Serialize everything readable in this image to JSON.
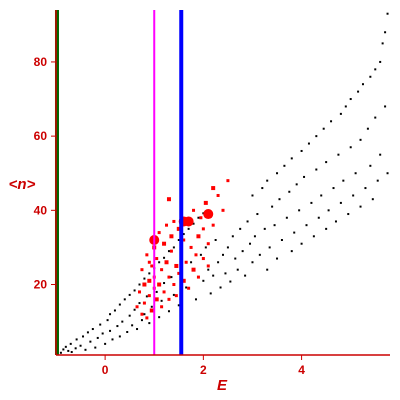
{
  "chart_data": {
    "type": "scatter",
    "title": "",
    "xlabel": "E",
    "ylabel": "<n>",
    "xlim": [
      -1.0,
      5.8
    ],
    "ylim": [
      1,
      94
    ],
    "grid": false,
    "x_ticks": [
      0,
      2,
      4
    ],
    "y_ticks": [
      20,
      40,
      60,
      80
    ],
    "colors": {
      "axes": "#cc0000",
      "tick_labels": "#cc0000",
      "black_points": "#000000",
      "red_points": "#ff0000",
      "line_green": "#006600",
      "line_magenta": "#ff00ff",
      "line_blue": "#0000ff"
    },
    "vertical_lines": [
      {
        "x": -0.98,
        "color": "#006600",
        "width_class": "thick"
      },
      {
        "x": 1.0,
        "color": "#ff00ff",
        "width_class": "thin"
      },
      {
        "x": 1.55,
        "color": "#0000ff",
        "width_class": "thick"
      }
    ],
    "series": [
      {
        "marker": "small-square",
        "color": "#000000",
        "points": [
          [
            -0.9,
            1.6
          ],
          [
            -0.85,
            2.5
          ],
          [
            -0.8,
            3.2
          ],
          [
            -0.75,
            2.1
          ],
          [
            -0.7,
            4.0
          ],
          [
            -0.68,
            1.8
          ],
          [
            -0.6,
            2.8
          ],
          [
            -0.58,
            5.2
          ],
          [
            -0.5,
            3.5
          ],
          [
            -0.45,
            6.0
          ],
          [
            -0.4,
            2.4
          ],
          [
            -0.35,
            7.1
          ],
          [
            -0.3,
            4.6
          ],
          [
            -0.25,
            8.0
          ],
          [
            -0.2,
            3.0
          ],
          [
            -0.15,
            5.6
          ],
          [
            -0.1,
            9.2
          ],
          [
            -0.05,
            6.8
          ],
          [
            0.0,
            4.0
          ],
          [
            0.05,
            10.4
          ],
          [
            0.1,
            7.5
          ],
          [
            0.1,
            12.0
          ],
          [
            0.15,
            5.2
          ],
          [
            0.2,
            13.0
          ],
          [
            0.25,
            8.8
          ],
          [
            0.3,
            6.0
          ],
          [
            0.3,
            14.6
          ],
          [
            0.35,
            10.0
          ],
          [
            0.4,
            16.0
          ],
          [
            0.45,
            7.2
          ],
          [
            0.5,
            17.2
          ],
          [
            0.5,
            11.6
          ],
          [
            0.55,
            9.0
          ],
          [
            0.6,
            18.4
          ],
          [
            0.6,
            13.2
          ],
          [
            0.65,
            8.0
          ],
          [
            0.7,
            20.0
          ],
          [
            0.7,
            15.0
          ],
          [
            0.75,
            10.4
          ],
          [
            0.8,
            21.6
          ],
          [
            0.8,
            12.0
          ],
          [
            0.85,
            16.8
          ],
          [
            0.9,
            23.0
          ],
          [
            0.9,
            9.6
          ],
          [
            0.95,
            14.0
          ],
          [
            1.0,
            24.4
          ],
          [
            1.05,
            18.0
          ],
          [
            1.1,
            11.2
          ],
          [
            1.1,
            26.0
          ],
          [
            1.15,
            15.6
          ],
          [
            1.2,
            27.2
          ],
          [
            1.2,
            20.4
          ],
          [
            1.3,
            12.8
          ],
          [
            1.3,
            29.0
          ],
          [
            1.35,
            22.0
          ],
          [
            1.4,
            30.0
          ],
          [
            1.4,
            17.2
          ],
          [
            1.5,
            32.0
          ],
          [
            1.5,
            14.4
          ],
          [
            1.55,
            24.0
          ],
          [
            1.6,
            33.6
          ],
          [
            1.65,
            19.2
          ],
          [
            1.7,
            35.0
          ],
          [
            1.75,
            26.0
          ],
          [
            1.8,
            36.4
          ],
          [
            1.85,
            16.0
          ],
          [
            1.9,
            38.0
          ],
          [
            1.95,
            28.0
          ],
          [
            2.0,
            21.0
          ],
          [
            2.0,
            39.2
          ],
          [
            2.05,
            30.0
          ],
          [
            2.1,
            24.0
          ],
          [
            2.15,
            17.6
          ],
          [
            2.2,
            22.4
          ],
          [
            2.25,
            32.0
          ],
          [
            2.3,
            26.0
          ],
          [
            2.35,
            19.2
          ],
          [
            2.4,
            28.0
          ],
          [
            2.45,
            23.0
          ],
          [
            2.5,
            30.0
          ],
          [
            2.55,
            20.8
          ],
          [
            2.6,
            33.0
          ],
          [
            2.65,
            27.0
          ],
          [
            2.7,
            24.0
          ],
          [
            2.75,
            35.0
          ],
          [
            2.8,
            29.0
          ],
          [
            2.85,
            22.4
          ],
          [
            2.9,
            37.0
          ],
          [
            2.95,
            31.0
          ],
          [
            3.0,
            26.0
          ],
          [
            3.0,
            44.0
          ],
          [
            3.05,
            33.0
          ],
          [
            3.1,
            39.0
          ],
          [
            3.15,
            28.0
          ],
          [
            3.2,
            46.0
          ],
          [
            3.25,
            35.0
          ],
          [
            3.3,
            24.0
          ],
          [
            3.3,
            48.0
          ],
          [
            3.35,
            30.0
          ],
          [
            3.4,
            41.0
          ],
          [
            3.45,
            36.0
          ],
          [
            3.5,
            50.0
          ],
          [
            3.5,
            27.0
          ],
          [
            3.55,
            43.0
          ],
          [
            3.6,
            32.0
          ],
          [
            3.65,
            52.0
          ],
          [
            3.7,
            38.0
          ],
          [
            3.75,
            45.0
          ],
          [
            3.8,
            29.0
          ],
          [
            3.8,
            54.0
          ],
          [
            3.85,
            34.0
          ],
          [
            3.9,
            47.0
          ],
          [
            3.95,
            40.0
          ],
          [
            4.0,
            56.0
          ],
          [
            4.0,
            31.0
          ],
          [
            4.05,
            49.0
          ],
          [
            4.1,
            36.0
          ],
          [
            4.15,
            58.0
          ],
          [
            4.2,
            42.0
          ],
          [
            4.25,
            33.0
          ],
          [
            4.3,
            60.0
          ],
          [
            4.3,
            51.0
          ],
          [
            4.35,
            38.0
          ],
          [
            4.4,
            44.0
          ],
          [
            4.45,
            62.0
          ],
          [
            4.5,
            35.0
          ],
          [
            4.5,
            53.0
          ],
          [
            4.55,
            40.0
          ],
          [
            4.6,
            64.0
          ],
          [
            4.65,
            46.0
          ],
          [
            4.7,
            37.0
          ],
          [
            4.75,
            55.0
          ],
          [
            4.8,
            66.0
          ],
          [
            4.8,
            42.0
          ],
          [
            4.85,
            48.0
          ],
          [
            4.9,
            68.0
          ],
          [
            4.95,
            39.0
          ],
          [
            5.0,
            57.0
          ],
          [
            5.0,
            70.0
          ],
          [
            5.05,
            44.0
          ],
          [
            5.1,
            50.0
          ],
          [
            5.15,
            72.0
          ],
          [
            5.2,
            41.0
          ],
          [
            5.2,
            59.0
          ],
          [
            5.25,
            74.0
          ],
          [
            5.3,
            46.0
          ],
          [
            5.35,
            62.0
          ],
          [
            5.4,
            76.0
          ],
          [
            5.4,
            52.0
          ],
          [
            5.45,
            43.0
          ],
          [
            5.5,
            78.0
          ],
          [
            5.5,
            65.0
          ],
          [
            5.55,
            48.0
          ],
          [
            5.6,
            80.0
          ],
          [
            5.6,
            55.0
          ],
          [
            5.65,
            85.0
          ],
          [
            5.7,
            68.0
          ],
          [
            5.7,
            88.0
          ],
          [
            5.75,
            50.0
          ],
          [
            5.75,
            93.0
          ]
        ]
      },
      {
        "marker": "square-sized",
        "color": "#ff0000",
        "points": [
          [
            0.65,
            14,
            1
          ],
          [
            0.7,
            18,
            1
          ],
          [
            0.75,
            12,
            1
          ],
          [
            0.75,
            24,
            1
          ],
          [
            0.8,
            20,
            2
          ],
          [
            0.8,
            15,
            1
          ],
          [
            0.85,
            28,
            1
          ],
          [
            0.85,
            11,
            1
          ],
          [
            0.9,
            21,
            2
          ],
          [
            0.9,
            17,
            1
          ],
          [
            0.95,
            25,
            1
          ],
          [
            0.95,
            13,
            2
          ],
          [
            1.0,
            30,
            2
          ],
          [
            1.0,
            22,
            1
          ],
          [
            1.0,
            19,
            1
          ],
          [
            1.05,
            16,
            2
          ],
          [
            1.05,
            27,
            1
          ],
          [
            1.1,
            34,
            1
          ],
          [
            1.1,
            20,
            2
          ],
          [
            1.15,
            14,
            1
          ],
          [
            1.15,
            24,
            1
          ],
          [
            1.2,
            31,
            2
          ],
          [
            1.2,
            18,
            1
          ],
          [
            1.25,
            36,
            1
          ],
          [
            1.25,
            26,
            2
          ],
          [
            1.3,
            22,
            1
          ],
          [
            1.3,
            16,
            1
          ],
          [
            1.35,
            29,
            1
          ],
          [
            1.35,
            33,
            2
          ],
          [
            1.4,
            20,
            1
          ],
          [
            1.4,
            37,
            1
          ],
          [
            1.45,
            25,
            2
          ],
          [
            1.45,
            17,
            1
          ],
          [
            1.5,
            35,
            2
          ],
          [
            1.5,
            23,
            1
          ],
          [
            1.55,
            28,
            1
          ],
          [
            1.6,
            21,
            2
          ],
          [
            1.6,
            32,
            1
          ],
          [
            1.65,
            26,
            1
          ],
          [
            1.7,
            37,
            3
          ],
          [
            1.7,
            19,
            1
          ],
          [
            1.75,
            30,
            1
          ],
          [
            1.8,
            24,
            2
          ],
          [
            1.8,
            40,
            1
          ],
          [
            1.85,
            28,
            1
          ],
          [
            1.9,
            33,
            2
          ],
          [
            1.9,
            22,
            1
          ],
          [
            1.95,
            38,
            1
          ],
          [
            2.0,
            27,
            1
          ],
          [
            2.0,
            35,
            1
          ],
          [
            2.05,
            42,
            2
          ],
          [
            2.1,
            25,
            1
          ],
          [
            2.1,
            31,
            1
          ],
          [
            2.2,
            36,
            1
          ],
          [
            2.3,
            44,
            1
          ],
          [
            2.4,
            40,
            1
          ],
          [
            2.5,
            48,
            1
          ],
          [
            1.0,
            32,
            3
          ],
          [
            1.6,
            37,
            3
          ],
          [
            2.1,
            39,
            3
          ],
          [
            1.3,
            43,
            2
          ],
          [
            2.2,
            46,
            2
          ],
          [
            0.9,
            26,
            1
          ]
        ]
      }
    ]
  }
}
